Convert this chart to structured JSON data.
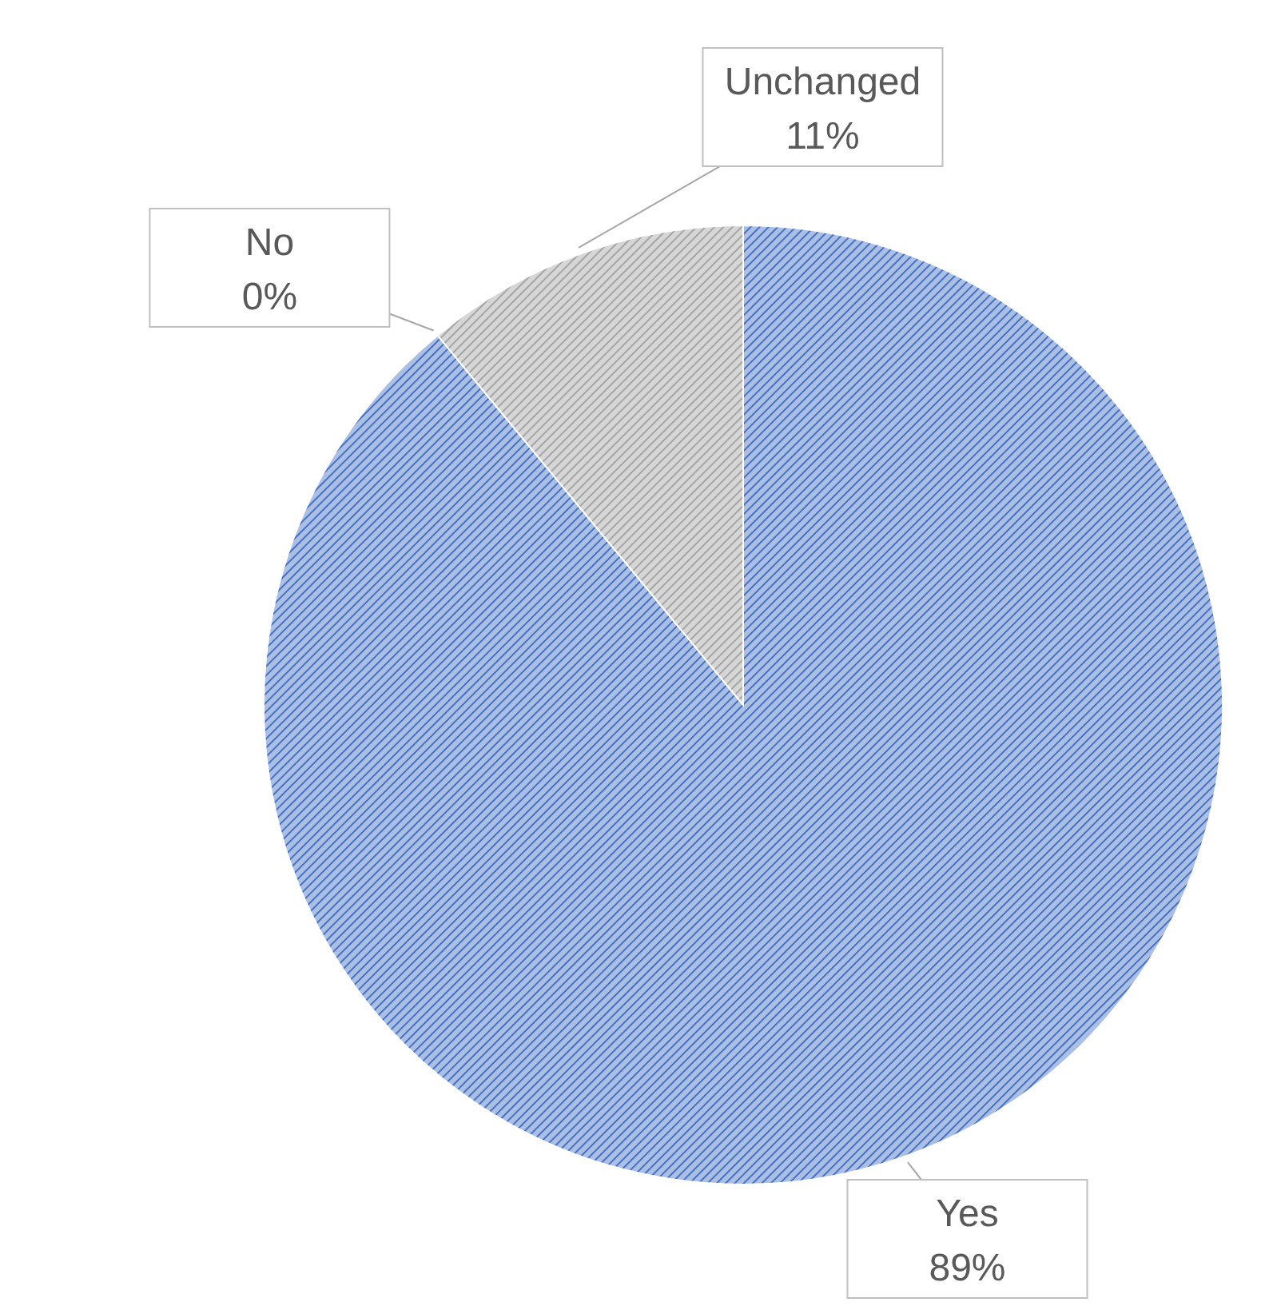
{
  "chart_data": {
    "type": "pie",
    "categories": [
      "Yes",
      "No",
      "Unchanged"
    ],
    "values": [
      89,
      0,
      11
    ],
    "colors": [
      "#4472c4",
      "#ed7d31",
      "#a5a5a5"
    ],
    "value_labels": [
      "89%",
      "0%",
      "11%"
    ],
    "legend": false
  }
}
